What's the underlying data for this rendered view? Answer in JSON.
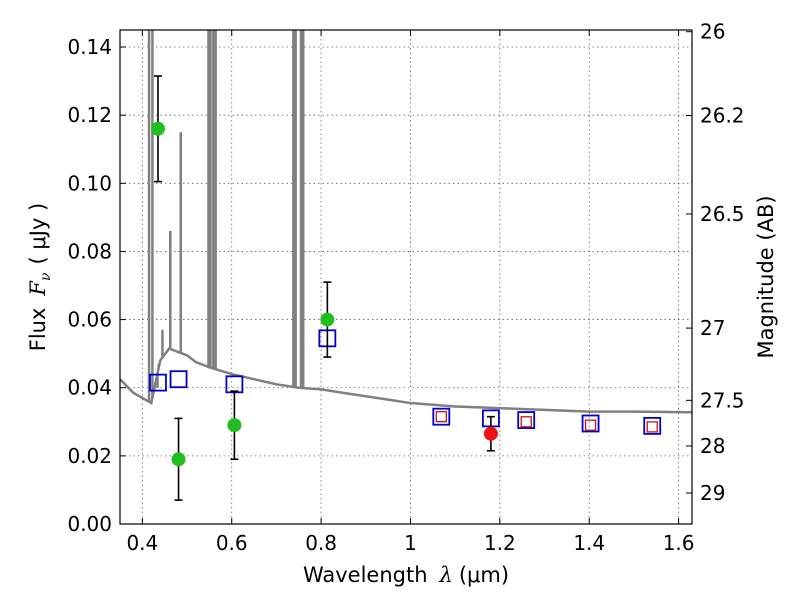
{
  "chart_data": {
    "type": "scatter",
    "title": "",
    "xlabel": {
      "prefix": "Wavelength",
      "symbol": "λ",
      "unit": "(μm)"
    },
    "ylabel": {
      "prefix": "Flux",
      "symbol": "F",
      "subscript": "ν",
      "unit": "( μJy )"
    },
    "y2label": "Magnitude (AB)",
    "xlim": [
      0.35,
      1.63
    ],
    "ylim": [
      0.0,
      0.145
    ],
    "xticks": [
      0.4,
      0.6,
      0.8,
      1.0,
      1.2,
      1.4,
      1.6
    ],
    "xtick_labels": [
      "0.4",
      "0.6",
      "0.8",
      "1",
      "1.2",
      "1.4",
      "1.6"
    ],
    "yticks": [
      0.0,
      0.02,
      0.04,
      0.06,
      0.08,
      0.1,
      0.12,
      0.14
    ],
    "ytick_labels": [
      "0.00",
      "0.02",
      "0.04",
      "0.06",
      "0.08",
      "0.10",
      "0.12",
      "0.14"
    ],
    "y2ticks": [
      {
        "label": "26",
        "flux": 0.1445
      },
      {
        "label": "26.2",
        "flux": 0.1199
      },
      {
        "label": "26.5",
        "flux": 0.091
      },
      {
        "label": "27",
        "flux": 0.0575
      },
      {
        "label": "27.5",
        "flux": 0.0363
      },
      {
        "label": "28",
        "flux": 0.0229
      },
      {
        "label": "29",
        "flux": 0.0091
      }
    ],
    "grid": true,
    "colors": {
      "model": "#808080",
      "green": "#1fbf1f",
      "red": "#ee1111",
      "blue_square": "#0000cc",
      "red_square": "#cc1111",
      "errorbar": "#000000"
    },
    "model_spectrum": {
      "x": [
        0.35,
        0.38,
        0.4,
        0.42,
        0.44,
        0.46,
        0.48,
        0.5,
        0.52,
        0.55,
        0.6,
        0.65,
        0.7,
        0.75,
        0.8,
        0.85,
        0.9,
        0.95,
        1.0,
        1.05,
        1.1,
        1.2,
        1.3,
        1.4,
        1.5,
        1.63
      ],
      "y": [
        0.0425,
        0.0385,
        0.037,
        0.0355,
        0.048,
        0.0515,
        0.0505,
        0.0495,
        0.0475,
        0.046,
        0.044,
        0.0425,
        0.041,
        0.04,
        0.0395,
        0.0385,
        0.0375,
        0.0365,
        0.0355,
        0.035,
        0.0345,
        0.034,
        0.0335,
        0.033,
        0.033,
        0.0328
      ],
      "emission_lines": [
        {
          "x": 0.415,
          "peak": 0.145
        },
        {
          "x": 0.4225,
          "peak": 0.145
        },
        {
          "x": 0.434,
          "peak": 0.04
        },
        {
          "x": 0.4365,
          "peak": 0.047
        },
        {
          "x": 0.445,
          "peak": 0.057
        },
        {
          "x": 0.4625,
          "peak": 0.086
        },
        {
          "x": 0.486,
          "peak": 0.115
        },
        {
          "x": 0.548,
          "peak": 0.145
        },
        {
          "x": 0.5525,
          "peak": 0.145
        },
        {
          "x": 0.559,
          "peak": 0.145
        },
        {
          "x": 0.564,
          "peak": 0.145
        },
        {
          "x": 0.738,
          "peak": 0.145
        },
        {
          "x": 0.743,
          "peak": 0.145
        },
        {
          "x": 0.755,
          "peak": 0.145
        },
        {
          "x": 0.76,
          "peak": 0.145
        }
      ]
    },
    "observed_green": [
      {
        "x": 0.435,
        "y": 0.116,
        "err": 0.0155
      },
      {
        "x": 0.481,
        "y": 0.019,
        "err": 0.012
      },
      {
        "x": 0.606,
        "y": 0.029,
        "err": 0.01
      },
      {
        "x": 0.814,
        "y": 0.06,
        "err": 0.011
      }
    ],
    "observed_red": [
      {
        "x": 1.18,
        "y": 0.0265,
        "err": 0.005
      }
    ],
    "model_blue_squares": [
      {
        "x": 0.435,
        "y": 0.0415
      },
      {
        "x": 0.481,
        "y": 0.0425
      },
      {
        "x": 0.606,
        "y": 0.041
      },
      {
        "x": 0.814,
        "y": 0.0545
      },
      {
        "x": 1.069,
        "y": 0.0315
      },
      {
        "x": 1.18,
        "y": 0.031
      },
      {
        "x": 1.259,
        "y": 0.0305
      },
      {
        "x": 1.403,
        "y": 0.0295
      },
      {
        "x": 1.541,
        "y": 0.0288
      }
    ],
    "model_red_squares": [
      {
        "x": 1.069,
        "y": 0.0315
      },
      {
        "x": 1.259,
        "y": 0.03
      },
      {
        "x": 1.403,
        "y": 0.029
      },
      {
        "x": 1.541,
        "y": 0.0285
      }
    ]
  }
}
